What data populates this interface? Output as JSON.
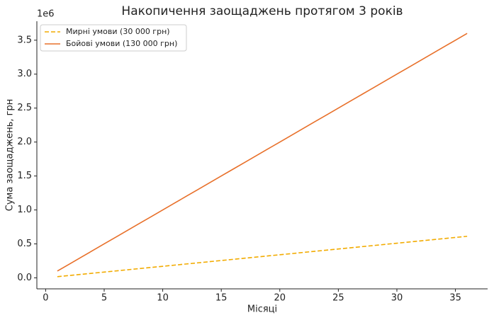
{
  "chart_data": {
    "type": "line",
    "title": "Накопичення заощаджень протягом 3 років",
    "x_label": "Місяці",
    "y_label": "Сума заощаджень, грн",
    "y_offset_label": "1e6",
    "x": [
      1,
      2,
      3,
      4,
      5,
      6,
      7,
      8,
      9,
      10,
      11,
      12,
      13,
      14,
      15,
      16,
      17,
      18,
      19,
      20,
      21,
      22,
      23,
      24,
      25,
      26,
      27,
      28,
      29,
      30,
      31,
      32,
      33,
      34,
      35,
      36
    ],
    "series": [
      {
        "name": "Мирні умови (30 000 грн)",
        "color": "#f2ab00",
        "dash": true,
        "values": [
          17000,
          34000,
          51000,
          68000,
          85000,
          102000,
          119000,
          136000,
          153000,
          170000,
          187000,
          204000,
          221000,
          238000,
          255000,
          272000,
          289000,
          306000,
          323000,
          340000,
          357000,
          374000,
          391000,
          408000,
          425000,
          442000,
          459000,
          476000,
          493000,
          510000,
          527000,
          544000,
          561000,
          578000,
          595000,
          612000
        ]
      },
      {
        "name": "Бойові умови (130 000 грн)",
        "color": "#e8702a",
        "dash": false,
        "values": [
          100000,
          200000,
          300000,
          400000,
          500000,
          600000,
          700000,
          800000,
          900000,
          1000000,
          1100000,
          1200000,
          1300000,
          1400000,
          1500000,
          1600000,
          1700000,
          1800000,
          1900000,
          2000000,
          2100000,
          2200000,
          2300000,
          2400000,
          2500000,
          2600000,
          2700000,
          2800000,
          2900000,
          3000000,
          3100000,
          3200000,
          3300000,
          3400000,
          3500000,
          3600000
        ]
      }
    ],
    "xlim": [
      -0.75,
      37.75
    ],
    "ylim": [
      -162150,
      3779150
    ],
    "xticks": [
      0,
      5,
      10,
      15,
      20,
      25,
      30,
      35
    ],
    "yticks": [
      {
        "value": 0,
        "label": "0.0"
      },
      {
        "value": 500000,
        "label": "0.5"
      },
      {
        "value": 1000000,
        "label": "1.0"
      },
      {
        "value": 1500000,
        "label": "1.5"
      },
      {
        "value": 2000000,
        "label": "2.0"
      },
      {
        "value": 2500000,
        "label": "2.5"
      },
      {
        "value": 3000000,
        "label": "3.0"
      },
      {
        "value": 3500000,
        "label": "3.5"
      }
    ],
    "legend": "upper left",
    "grid": false
  }
}
